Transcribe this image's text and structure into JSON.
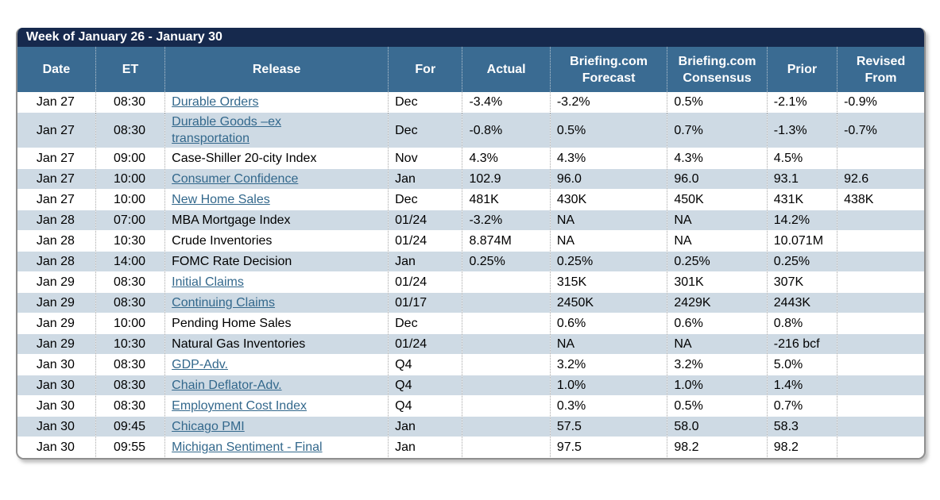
{
  "title": "Week of January 26 - January 30",
  "colors": {
    "navy": "#16294d",
    "header_bg": "#3a6b92",
    "alt_row": "#cedae4",
    "link": "#33688c"
  },
  "table": {
    "columns": [
      {
        "key": "date",
        "label": "Date"
      },
      {
        "key": "et",
        "label": "ET"
      },
      {
        "key": "release",
        "label": "Release"
      },
      {
        "key": "for",
        "label": "For"
      },
      {
        "key": "actual",
        "label": "Actual"
      },
      {
        "key": "forecast",
        "label": "Briefing.com\nForecast"
      },
      {
        "key": "consensus",
        "label": "Briefing.com\nConsensus"
      },
      {
        "key": "prior",
        "label": "Prior"
      },
      {
        "key": "revised",
        "label": "Revised\nFrom"
      }
    ],
    "rows": [
      {
        "date": "Jan 27",
        "et": "08:30",
        "release": "Durable Orders",
        "release_link": true,
        "for": "Dec",
        "actual": "-3.4%",
        "forecast": "-3.2%",
        "consensus": "0.5%",
        "prior": "-2.1%",
        "revised": "-0.9%"
      },
      {
        "date": "Jan 27",
        "et": "08:30",
        "release": "Durable Goods –ex\ntransportation",
        "release_link": true,
        "for": "Dec",
        "actual": "-0.8%",
        "forecast": "0.5%",
        "consensus": "0.7%",
        "prior": "-1.3%",
        "revised": "-0.7%"
      },
      {
        "date": "Jan 27",
        "et": "09:00",
        "release": "Case-Shiller 20-city Index",
        "release_link": false,
        "for": "Nov",
        "actual": "4.3%",
        "forecast": "4.3%",
        "consensus": "4.3%",
        "prior": "4.5%",
        "revised": ""
      },
      {
        "date": "Jan 27",
        "et": "10:00",
        "release": "Consumer Confidence",
        "release_link": true,
        "for": "Jan",
        "actual": "102.9",
        "forecast": "96.0",
        "consensus": "96.0",
        "prior": "93.1",
        "revised": "92.6"
      },
      {
        "date": "Jan 27",
        "et": "10:00",
        "release": "New Home Sales",
        "release_link": true,
        "for": "Dec",
        "actual": "481K",
        "forecast": "430K",
        "consensus": "450K",
        "prior": "431K",
        "revised": "438K"
      },
      {
        "date": "Jan 28",
        "et": "07:00",
        "release": "MBA Mortgage Index",
        "release_link": false,
        "for": "01/24",
        "actual": "-3.2%",
        "forecast": "NA",
        "consensus": "NA",
        "prior": "14.2%",
        "revised": ""
      },
      {
        "date": "Jan 28",
        "et": "10:30",
        "release": "Crude Inventories",
        "release_link": false,
        "for": "01/24",
        "actual": "8.874M",
        "forecast": "NA",
        "consensus": "NA",
        "prior": "10.071M",
        "revised": ""
      },
      {
        "date": "Jan 28",
        "et": "14:00",
        "release": "FOMC Rate Decision",
        "release_link": false,
        "for": "Jan",
        "actual": "0.25%",
        "forecast": "0.25%",
        "consensus": "0.25%",
        "prior": "0.25%",
        "revised": ""
      },
      {
        "date": "Jan 29",
        "et": "08:30",
        "release": "Initial Claims",
        "release_link": true,
        "for": "01/24",
        "actual": "",
        "forecast": "315K",
        "consensus": "301K",
        "prior": "307K",
        "revised": ""
      },
      {
        "date": "Jan 29",
        "et": "08:30",
        "release": "Continuing Claims",
        "release_link": true,
        "for": "01/17",
        "actual": "",
        "forecast": "2450K",
        "consensus": "2429K",
        "prior": "2443K",
        "revised": ""
      },
      {
        "date": "Jan 29",
        "et": "10:00",
        "release": "Pending Home Sales",
        "release_link": false,
        "for": "Dec",
        "actual": "",
        "forecast": "0.6%",
        "consensus": "0.6%",
        "prior": "0.8%",
        "revised": ""
      },
      {
        "date": "Jan 29",
        "et": "10:30",
        "release": "Natural Gas Inventories",
        "release_link": false,
        "for": "01/24",
        "actual": "",
        "forecast": "NA",
        "consensus": "NA",
        "prior": "-216 bcf",
        "revised": ""
      },
      {
        "date": "Jan 30",
        "et": "08:30",
        "release": "GDP-Adv.",
        "release_link": true,
        "for": "Q4",
        "actual": "",
        "forecast": "3.2%",
        "consensus": "3.2%",
        "prior": "5.0%",
        "revised": ""
      },
      {
        "date": "Jan 30",
        "et": "08:30",
        "release": "Chain Deflator-Adv.",
        "release_link": true,
        "for": "Q4",
        "actual": "",
        "forecast": "1.0%",
        "consensus": "1.0%",
        "prior": "1.4%",
        "revised": ""
      },
      {
        "date": "Jan 30",
        "et": "08:30",
        "release": "Employment Cost Index",
        "release_link": true,
        "for": "Q4",
        "actual": "",
        "forecast": "0.3%",
        "consensus": "0.5%",
        "prior": "0.7%",
        "revised": ""
      },
      {
        "date": "Jan 30",
        "et": "09:45",
        "release": "Chicago PMI",
        "release_link": true,
        "for": "Jan",
        "actual": "",
        "forecast": "57.5",
        "consensus": "58.0",
        "prior": "58.3",
        "revised": ""
      },
      {
        "date": "Jan 30",
        "et": "09:55",
        "release": "Michigan Sentiment - Final",
        "release_link": true,
        "for": "Jan",
        "actual": "",
        "forecast": "97.5",
        "consensus": "98.2",
        "prior": "98.2",
        "revised": ""
      }
    ]
  }
}
